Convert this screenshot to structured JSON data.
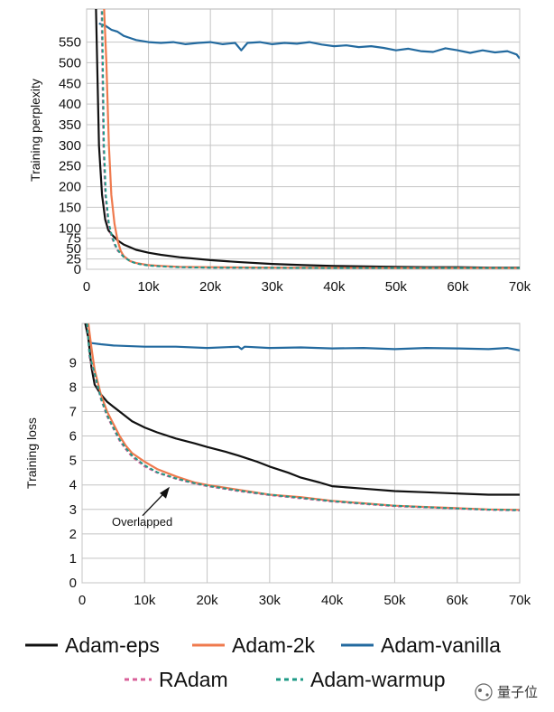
{
  "colors": {
    "Adam-eps": "#111111",
    "Adam-2k": "#ef7a4e",
    "Adam-vanilla": "#236a9f",
    "RAdam": "#d9619a",
    "Adam-warmup": "#1e9a86"
  },
  "legend": [
    {
      "name": "Adam-eps",
      "dash": "solid"
    },
    {
      "name": "Adam-2k",
      "dash": "solid"
    },
    {
      "name": "Adam-vanilla",
      "dash": "solid"
    },
    {
      "name": "RAdam",
      "dash": "dashed"
    },
    {
      "name": "Adam-warmup",
      "dash": "dashed"
    }
  ],
  "watermark": {
    "text": "量子位"
  },
  "chart_data": [
    {
      "type": "line",
      "title": "",
      "xlabel": "",
      "ylabel": "Training perplexity",
      "xlim": [
        0,
        70000
      ],
      "ylim": [
        0,
        630
      ],
      "grid": true,
      "x_ticks": [
        0,
        10000,
        20000,
        30000,
        40000,
        50000,
        60000,
        70000
      ],
      "x_tick_labels": [
        "0",
        "10k",
        "20k",
        "30k",
        "40k",
        "50k",
        "60k",
        "70k"
      ],
      "y_ticks": [
        0,
        25,
        50,
        75,
        100,
        150,
        200,
        250,
        300,
        350,
        400,
        450,
        500,
        550
      ],
      "y_tick_labels": [
        "0",
        "25",
        "50",
        "75",
        "100",
        "150",
        "200",
        "250",
        "300",
        "350",
        "400",
        "450",
        "500",
        "550"
      ],
      "series": [
        {
          "name": "Adam-vanilla",
          "x": [
            2000,
            3000,
            4000,
            5000,
            6000,
            7000,
            8000,
            10000,
            12000,
            14000,
            16000,
            18000,
            20000,
            22000,
            24000,
            25000,
            26000,
            28000,
            30000,
            32000,
            34000,
            36000,
            38000,
            40000,
            42000,
            44000,
            46000,
            48000,
            50000,
            52000,
            54000,
            56000,
            58000,
            60000,
            62000,
            64000,
            66000,
            68000,
            69500,
            70000
          ],
          "y": [
            595,
            590,
            580,
            575,
            565,
            560,
            555,
            550,
            548,
            550,
            545,
            548,
            550,
            545,
            548,
            530,
            548,
            550,
            545,
            548,
            546,
            550,
            544,
            540,
            542,
            538,
            540,
            536,
            530,
            534,
            528,
            526,
            535,
            530,
            524,
            530,
            525,
            528,
            520,
            510
          ]
        },
        {
          "name": "Adam-eps",
          "x": [
            1500,
            2000,
            2500,
            3000,
            3500,
            4000,
            5000,
            6000,
            8000,
            10000,
            12000,
            15000,
            20000,
            25000,
            30000,
            35000,
            40000,
            45000,
            50000,
            55000,
            60000,
            65000,
            70000
          ],
          "y": [
            640,
            300,
            180,
            120,
            95,
            85,
            70,
            60,
            47,
            40,
            35,
            29,
            22,
            17,
            13,
            10,
            8,
            7,
            6,
            5,
            5,
            4,
            4
          ]
        },
        {
          "name": "Adam-2k",
          "x": [
            2800,
            3200,
            3600,
            4000,
            4500,
            5000,
            5500,
            6000,
            7000,
            8000,
            10000,
            12000,
            15000,
            20000,
            30000,
            40000,
            50000,
            60000,
            70000
          ],
          "y": [
            640,
            500,
            300,
            180,
            110,
            70,
            45,
            32,
            20,
            15,
            10,
            8,
            6,
            5,
            4,
            3.5,
            3,
            3,
            3
          ]
        },
        {
          "name": "RAdam",
          "x": [
            2400,
            2700,
            3000,
            3500,
            4000,
            4500,
            5000,
            6000,
            7000,
            8000,
            10000,
            12000,
            15000,
            20000,
            30000,
            40000,
            50000,
            60000,
            70000
          ],
          "y": [
            640,
            300,
            180,
            110,
            80,
            60,
            45,
            30,
            20,
            14,
            9,
            7,
            5,
            4,
            3.5,
            3,
            3,
            3,
            3
          ]
        },
        {
          "name": "Adam-warmup",
          "x": [
            2500,
            2800,
            3100,
            3600,
            4100,
            4600,
            5100,
            6000,
            7000,
            8000,
            10000,
            12000,
            15000,
            20000,
            30000,
            40000,
            50000,
            60000,
            70000
          ],
          "y": [
            640,
            300,
            180,
            110,
            80,
            60,
            45,
            30,
            20,
            14,
            9,
            7,
            5,
            4,
            3.5,
            3,
            3,
            3,
            3
          ]
        }
      ]
    },
    {
      "type": "line",
      "title": "",
      "xlabel": "",
      "ylabel": "Training loss",
      "xlim": [
        0,
        70000
      ],
      "ylim": [
        0,
        10.6
      ],
      "grid": true,
      "x_ticks": [
        0,
        10000,
        20000,
        30000,
        40000,
        50000,
        60000,
        70000
      ],
      "x_tick_labels": [
        "0",
        "10k",
        "20k",
        "30k",
        "40k",
        "50k",
        "60k",
        "70k"
      ],
      "y_ticks": [
        0,
        1,
        2,
        3,
        4,
        5,
        6,
        7,
        8,
        9
      ],
      "y_tick_labels": [
        "0",
        "1",
        "2",
        "3",
        "4",
        "5",
        "6",
        "7",
        "8",
        "9"
      ],
      "annotations": [
        {
          "text": "Overlapped",
          "x": 14000,
          "y": 4.0
        }
      ],
      "series": [
        {
          "name": "Adam-vanilla",
          "x": [
            1500,
            3000,
            5000,
            10000,
            15000,
            20000,
            25000,
            25500,
            26000,
            30000,
            35000,
            40000,
            45000,
            50000,
            55000,
            60000,
            65000,
            68000,
            70000
          ],
          "y": [
            9.8,
            9.75,
            9.7,
            9.65,
            9.65,
            9.6,
            9.65,
            9.55,
            9.65,
            9.6,
            9.62,
            9.58,
            9.6,
            9.55,
            9.6,
            9.58,
            9.55,
            9.6,
            9.5
          ]
        },
        {
          "name": "Adam-eps",
          "x": [
            500,
            1000,
            1500,
            2000,
            3000,
            4000,
            5000,
            6000,
            8000,
            10000,
            12000,
            15000,
            18000,
            20000,
            23000,
            25000,
            28000,
            30000,
            33000,
            35000,
            38000,
            40000,
            45000,
            50000,
            55000,
            60000,
            65000,
            70000
          ],
          "y": [
            10.6,
            10.0,
            8.8,
            8.1,
            7.7,
            7.4,
            7.2,
            7.0,
            6.6,
            6.35,
            6.15,
            5.9,
            5.7,
            5.55,
            5.35,
            5.2,
            4.95,
            4.75,
            4.5,
            4.3,
            4.1,
            3.95,
            3.85,
            3.75,
            3.7,
            3.65,
            3.6,
            3.6
          ]
        },
        {
          "name": "Adam-2k",
          "x": [
            1000,
            1500,
            2000,
            3000,
            4000,
            5000,
            6000,
            7000,
            8000,
            10000,
            12000,
            15000,
            18000,
            20000,
            25000,
            30000,
            35000,
            40000,
            45000,
            50000,
            55000,
            60000,
            65000,
            70000
          ],
          "y": [
            10.6,
            9.6,
            8.7,
            7.7,
            7.0,
            6.5,
            6.0,
            5.6,
            5.3,
            4.95,
            4.65,
            4.35,
            4.1,
            4.0,
            3.8,
            3.6,
            3.5,
            3.35,
            3.25,
            3.15,
            3.1,
            3.05,
            3.0,
            2.98
          ]
        },
        {
          "name": "RAdam",
          "x": [
            800,
            1200,
            2000,
            3000,
            4000,
            5000,
            6000,
            7000,
            8000,
            10000,
            12000,
            15000,
            18000,
            20000,
            25000,
            30000,
            35000,
            40000,
            45000,
            50000,
            55000,
            60000,
            65000,
            70000
          ],
          "y": [
            10.6,
            9.2,
            8.5,
            7.5,
            6.8,
            6.3,
            5.8,
            5.45,
            5.15,
            4.75,
            4.5,
            4.25,
            4.05,
            3.95,
            3.75,
            3.58,
            3.45,
            3.32,
            3.22,
            3.13,
            3.08,
            3.03,
            2.98,
            2.96
          ]
        },
        {
          "name": "Adam-warmup",
          "x": [
            800,
            1200,
            2000,
            3000,
            4000,
            5000,
            6000,
            7000,
            8000,
            10000,
            12000,
            15000,
            18000,
            20000,
            25000,
            30000,
            35000,
            40000,
            45000,
            50000,
            55000,
            60000,
            65000,
            70000
          ],
          "y": [
            10.6,
            9.3,
            8.55,
            7.55,
            6.85,
            6.35,
            5.85,
            5.5,
            5.2,
            4.8,
            4.52,
            4.27,
            4.07,
            3.97,
            3.77,
            3.6,
            3.47,
            3.34,
            3.24,
            3.15,
            3.09,
            3.04,
            2.99,
            2.97
          ]
        }
      ]
    }
  ]
}
